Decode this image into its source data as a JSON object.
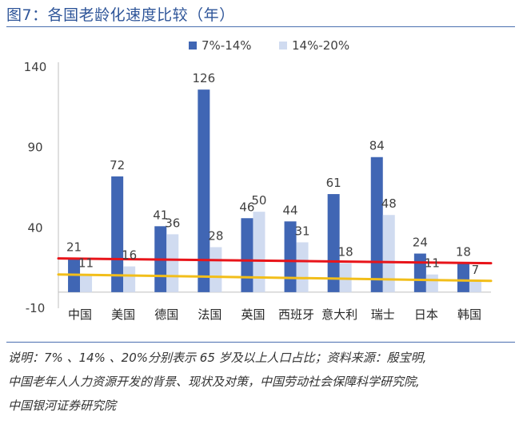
{
  "title": "图7：各国老龄化速度比较（年）",
  "notes": [
    "说明：7% 、14% 、20%分别表示 65 岁及以上人口占比；资料来源：殷宝明,",
    "中国老年人人力资源开发的背景、现状及对策，中国劳动社会保障科学研究院,",
    "中国银河证券研究院"
  ],
  "chart_data": {
    "type": "bar",
    "categories": [
      "中国",
      "美国",
      "德国",
      "法国",
      "英国",
      "西班牙",
      "意大利",
      "瑞士",
      "日本",
      "韩国"
    ],
    "series": [
      {
        "name": "7%-14%",
        "color": "#4066B4",
        "values": [
          21,
          72,
          41,
          126,
          46,
          44,
          61,
          84,
          24,
          18
        ]
      },
      {
        "name": "14%-20%",
        "color": "#D0DBF0",
        "values": [
          11,
          16,
          36,
          28,
          50,
          31,
          18,
          48,
          11,
          7
        ]
      }
    ],
    "yticks": [
      -10,
      40,
      90,
      140
    ],
    "ylim": [
      -10,
      140
    ],
    "lines": [
      {
        "color": "#E8141A",
        "from": 21,
        "to": 18
      },
      {
        "color": "#F2BE1A",
        "from": 11,
        "to": 7
      }
    ],
    "legend_position": "top"
  }
}
